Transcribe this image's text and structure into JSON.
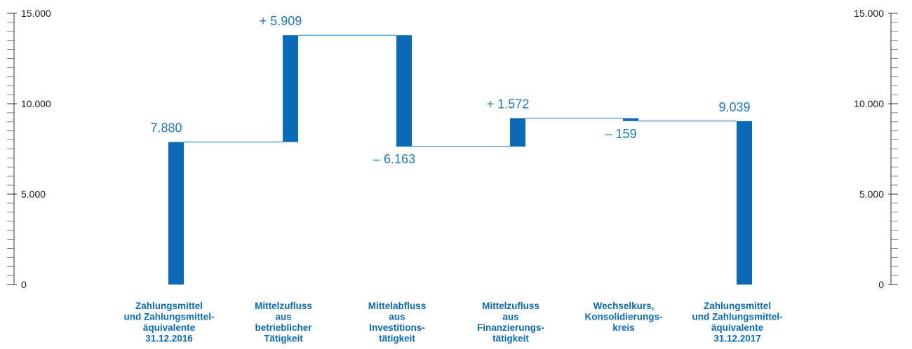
{
  "chart_data": {
    "type": "bar",
    "subtype": "waterfall",
    "ylim": [
      0,
      15000
    ],
    "y_ticks": [
      {
        "value": 0,
        "label": "0"
      },
      {
        "value": 5000,
        "label": "5.000"
      },
      {
        "value": 10000,
        "label": "10.000"
      },
      {
        "value": 15000,
        "label": "15.000"
      }
    ],
    "categories": [
      [
        "Zahlungsmittel",
        "und Zahlungsmittel-",
        "äquivalente",
        "31.12.2016"
      ],
      [
        "Mittelzufluss",
        "aus",
        "betrieblicher",
        "Tätigkeit"
      ],
      [
        "Mittelabfluss",
        "aus",
        "Investitions-",
        "tätigkeit"
      ],
      [
        "Mittelzufluss",
        "aus",
        "Finanzierungs-",
        "tätigkeit"
      ],
      [
        "Wechselkurs,",
        "Konsolidierungs-",
        "kreis"
      ],
      [
        "Zahlungsmittel",
        "und Zahlungsmittel-",
        "äquivalente",
        "31.12.2017"
      ]
    ],
    "values": [
      7880,
      5909,
      -6163,
      1572,
      -159,
      9039
    ],
    "kinds": [
      "total",
      "delta",
      "delta",
      "delta",
      "delta",
      "total"
    ],
    "value_labels": [
      "7.880",
      "+ 5.909",
      "– 6.163",
      "+ 1.572",
      "– 159",
      "9.039"
    ],
    "grid": false,
    "bar_color": "#0a6ab8",
    "label_color": "#1f78c1",
    "connector_color": "#1f78c1",
    "axis_color": "#333333"
  }
}
